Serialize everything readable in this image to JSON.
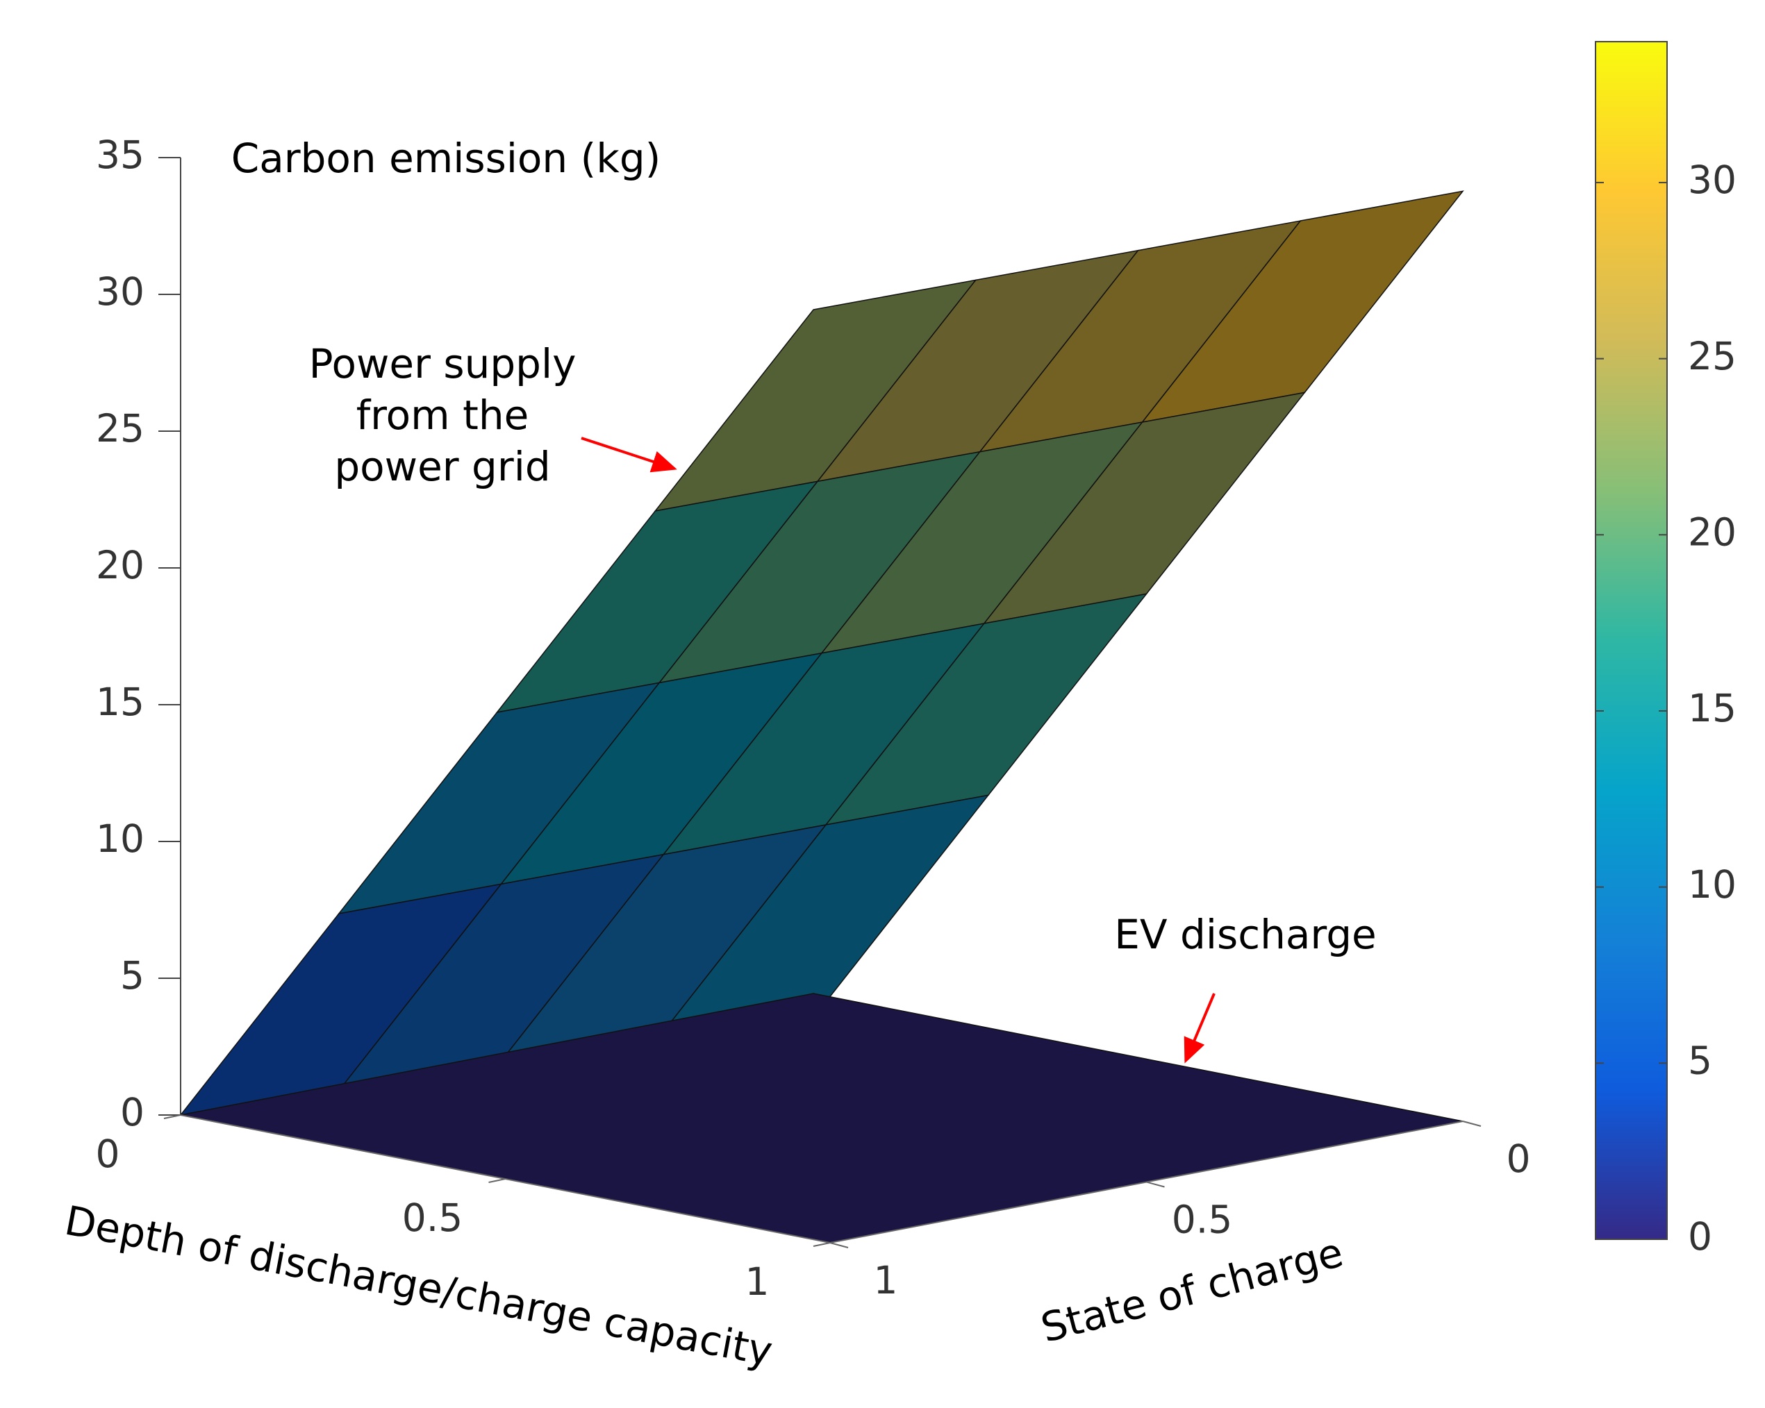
{
  "chart_data": {
    "type": "surface",
    "zlabel": "Carbon emission (kg)",
    "xlabel": "Depth of discharge/charge capacity",
    "ylabel": "State of charge",
    "xlim": [
      0,
      1
    ],
    "ylim": [
      0,
      1
    ],
    "zlim": [
      0,
      35
    ],
    "xticks": [
      0,
      0.5,
      1
    ],
    "yticks": [
      0,
      0.5,
      1
    ],
    "zticks": [
      0,
      5,
      10,
      15,
      20,
      25,
      30,
      35
    ],
    "surfaces": [
      {
        "x": [
          0,
          0.25,
          0.5,
          0.75,
          1
        ],
        "y": [
          0,
          0.25,
          0.5,
          0.75,
          1
        ],
        "z": [
          [
            25,
            27.25,
            29.5,
            31.75,
            34
          ],
          [
            18.75,
            21,
            23.25,
            25.5,
            27.75
          ],
          [
            12.5,
            14.75,
            17,
            19.25,
            21.5
          ],
          [
            6.25,
            8.5,
            10.75,
            13,
            15.25
          ],
          [
            0,
            2.25,
            4.5,
            6.75,
            9
          ]
        ],
        "annotation": {
          "lines": [
            "Power supply",
            "from the",
            "power grid"
          ],
          "arrow_color": "#ff0000"
        }
      },
      {
        "x": [
          0,
          1
        ],
        "y": [
          0,
          1
        ],
        "z": [
          [
            0,
            0
          ],
          [
            0,
            0
          ]
        ],
        "annotation": {
          "lines": [
            "EV discharge"
          ],
          "arrow_color": "#ff0000"
        }
      }
    ],
    "colorbar": {
      "clim": [
        0,
        34
      ],
      "ticks": [
        0,
        5,
        10,
        15,
        20,
        25,
        30
      ],
      "colormap": [
        "#352a87",
        "#0f5cdd",
        "#1481d6",
        "#06a4ca",
        "#2eb7a4",
        "#87bf77",
        "#d1bb59",
        "#fec832",
        "#f9fb0e"
      ]
    }
  }
}
